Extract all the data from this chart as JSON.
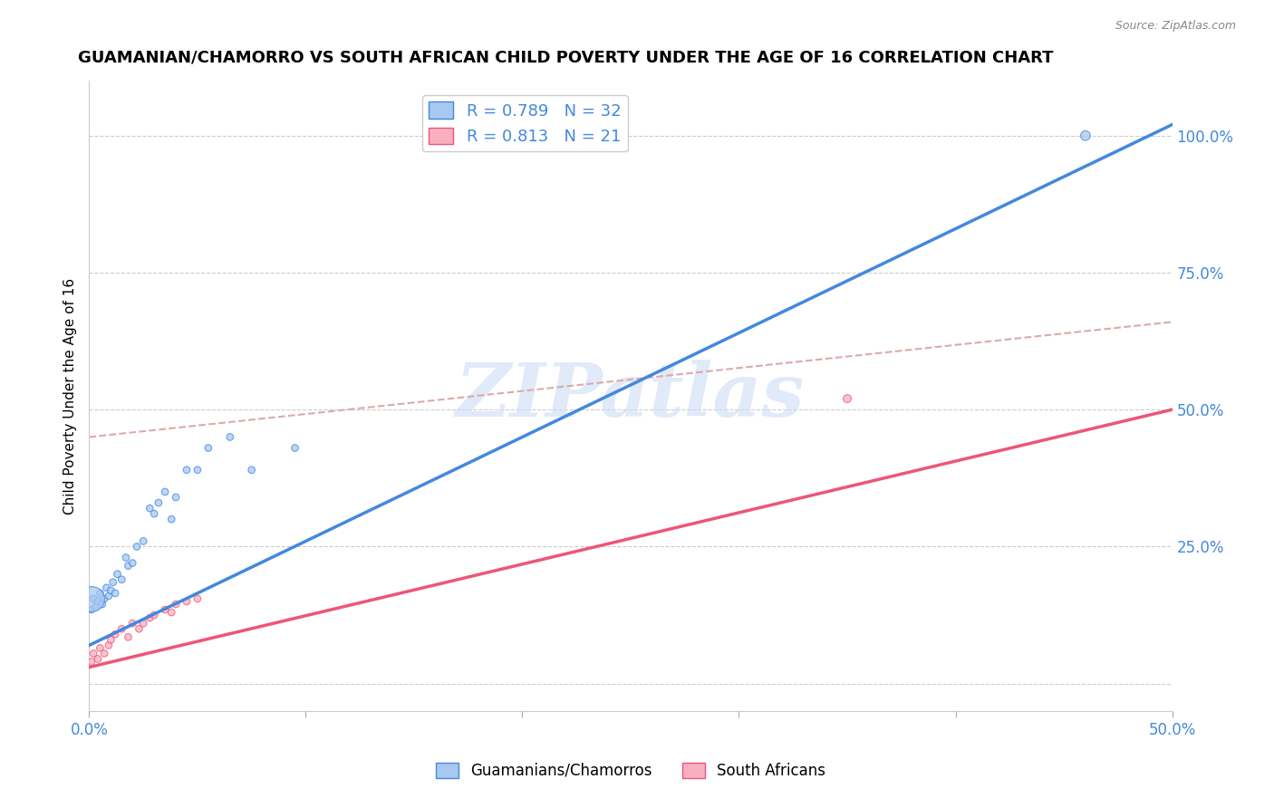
{
  "title": "GUAMANIAN/CHAMORRO VS SOUTH AFRICAN CHILD POVERTY UNDER THE AGE OF 16 CORRELATION CHART",
  "source": "Source: ZipAtlas.com",
  "ylabel": "Child Poverty Under the Age of 16",
  "xlim": [
    0.0,
    0.5
  ],
  "ylim": [
    -0.05,
    1.1
  ],
  "xticks": [
    0.0,
    0.1,
    0.2,
    0.3,
    0.4,
    0.5
  ],
  "xticklabels": [
    "0.0%",
    "",
    "",
    "",
    "",
    "50.0%"
  ],
  "ytick_positions": [
    0.0,
    0.25,
    0.5,
    0.75,
    1.0
  ],
  "ytick_labels": [
    "",
    "25.0%",
    "50.0%",
    "75.0%",
    "100.0%"
  ],
  "blue_R": 0.789,
  "blue_N": 32,
  "pink_R": 0.813,
  "pink_N": 21,
  "blue_color": "#A8C8F0",
  "pink_color": "#F8B0C0",
  "blue_line_color": "#4488DD",
  "pink_line_color": "#EE5577",
  "watermark_text": "ZIPatlas",
  "legend_label_blue": "Guamanians/Chamorros",
  "legend_label_pink": "South Africans",
  "blue_scatter_x": [
    0.001,
    0.002,
    0.003,
    0.004,
    0.005,
    0.006,
    0.007,
    0.008,
    0.009,
    0.01,
    0.011,
    0.012,
    0.013,
    0.015,
    0.017,
    0.018,
    0.02,
    0.022,
    0.025,
    0.028,
    0.03,
    0.032,
    0.035,
    0.038,
    0.04,
    0.045,
    0.05,
    0.055,
    0.065,
    0.075,
    0.095,
    0.46
  ],
  "blue_scatter_y": [
    0.135,
    0.155,
    0.14,
    0.15,
    0.165,
    0.145,
    0.155,
    0.175,
    0.16,
    0.17,
    0.185,
    0.165,
    0.2,
    0.19,
    0.23,
    0.215,
    0.22,
    0.25,
    0.26,
    0.32,
    0.31,
    0.33,
    0.35,
    0.3,
    0.34,
    0.39,
    0.39,
    0.43,
    0.45,
    0.39,
    0.43,
    1.0
  ],
  "blue_scatter_sizes": [
    30,
    30,
    30,
    30,
    30,
    30,
    30,
    30,
    30,
    30,
    30,
    30,
    30,
    30,
    30,
    30,
    30,
    30,
    30,
    30,
    30,
    30,
    30,
    30,
    30,
    30,
    30,
    30,
    30,
    30,
    30,
    60
  ],
  "blue_big_x": [
    0.001
  ],
  "blue_big_y": [
    0.155
  ],
  "blue_big_size": [
    400
  ],
  "pink_scatter_x": [
    0.001,
    0.002,
    0.004,
    0.005,
    0.007,
    0.009,
    0.01,
    0.012,
    0.015,
    0.018,
    0.02,
    0.023,
    0.025,
    0.028,
    0.03,
    0.035,
    0.038,
    0.04,
    0.045,
    0.05,
    0.35
  ],
  "pink_scatter_y": [
    0.04,
    0.055,
    0.045,
    0.065,
    0.055,
    0.07,
    0.08,
    0.09,
    0.1,
    0.085,
    0.11,
    0.1,
    0.11,
    0.12,
    0.125,
    0.135,
    0.13,
    0.145,
    0.15,
    0.155,
    0.52
  ],
  "pink_scatter_sizes": [
    30,
    30,
    30,
    30,
    30,
    30,
    30,
    30,
    30,
    30,
    30,
    30,
    30,
    30,
    30,
    30,
    30,
    30,
    30,
    30,
    40
  ],
  "blue_line_x": [
    0.0,
    0.5
  ],
  "blue_line_y": [
    0.07,
    1.02
  ],
  "pink_line_x": [
    0.0,
    0.5
  ],
  "pink_line_y": [
    0.03,
    0.5
  ],
  "dashed_line_x": [
    0.0,
    0.5
  ],
  "dashed_line_y": [
    0.45,
    0.66
  ],
  "background_color": "#FFFFFF",
  "grid_color": "#CCCCCC",
  "axis_color": "#4488DD",
  "title_color": "#000000",
  "title_fontsize": 13,
  "label_fontsize": 11,
  "tick_fontsize": 12
}
